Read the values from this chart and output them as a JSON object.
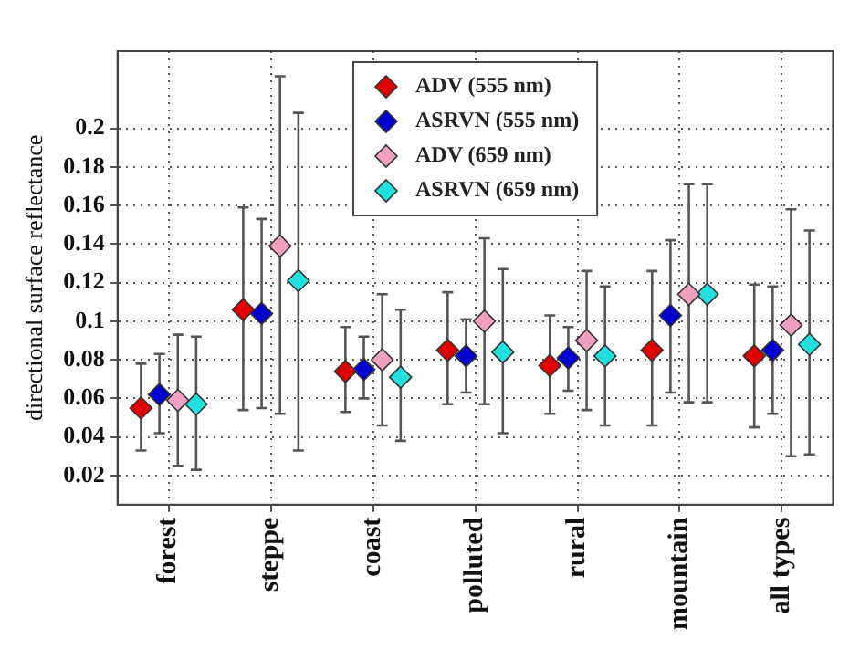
{
  "chart_data": {
    "type": "scatter",
    "ylabel": "directional surface reflectance",
    "categories": [
      "forest",
      "steppe",
      "coast",
      "polluted",
      "rural",
      "mountain",
      "all types"
    ],
    "series": [
      {
        "name": "ADV (555 nm)",
        "color": "#e00000",
        "values": [
          0.055,
          0.106,
          0.074,
          0.085,
          0.077,
          0.085,
          0.082
        ],
        "errors": [
          [
            0.033,
            0.078
          ],
          [
            0.054,
            0.159
          ],
          [
            0.053,
            0.097
          ],
          [
            0.057,
            0.115
          ],
          [
            0.052,
            0.103
          ],
          [
            0.046,
            0.126
          ],
          [
            0.045,
            0.119
          ]
        ]
      },
      {
        "name": "ASRVN (555 nm)",
        "color": "#0000d0",
        "values": [
          0.062,
          0.104,
          0.075,
          0.082,
          0.081,
          0.103,
          0.085
        ],
        "errors": [
          [
            0.042,
            0.083
          ],
          [
            0.055,
            0.153
          ],
          [
            0.06,
            0.092
          ],
          [
            0.063,
            0.101
          ],
          [
            0.064,
            0.097
          ],
          [
            0.063,
            0.142
          ],
          [
            0.052,
            0.118
          ]
        ]
      },
      {
        "name": "ADV (659 nm)",
        "color": "#f0a0c0",
        "values": [
          0.059,
          0.139,
          0.08,
          0.1,
          0.09,
          0.114,
          0.098
        ],
        "errors": [
          [
            0.025,
            0.093
          ],
          [
            0.052,
            0.227
          ],
          [
            0.046,
            0.114
          ],
          [
            0.057,
            0.143
          ],
          [
            0.054,
            0.126
          ],
          [
            0.058,
            0.171
          ],
          [
            0.03,
            0.158
          ]
        ]
      },
      {
        "name": "ASRVN (659 nm)",
        "color": "#20e0e0",
        "values": [
          0.057,
          0.121,
          0.071,
          0.084,
          0.082,
          0.114,
          0.088
        ],
        "errors": [
          [
            0.023,
            0.092
          ],
          [
            0.033,
            0.208
          ],
          [
            0.038,
            0.106
          ],
          [
            0.042,
            0.127
          ],
          [
            0.046,
            0.118
          ],
          [
            0.058,
            0.171
          ],
          [
            0.031,
            0.147
          ]
        ]
      }
    ],
    "ylim": [
      0.005,
      0.24
    ],
    "yticks": [
      0.02,
      0.04,
      0.06,
      0.08,
      0.1,
      0.12,
      0.14,
      0.16,
      0.18,
      0.2
    ],
    "grid": true,
    "legend": "top",
    "marker": "diamond"
  }
}
